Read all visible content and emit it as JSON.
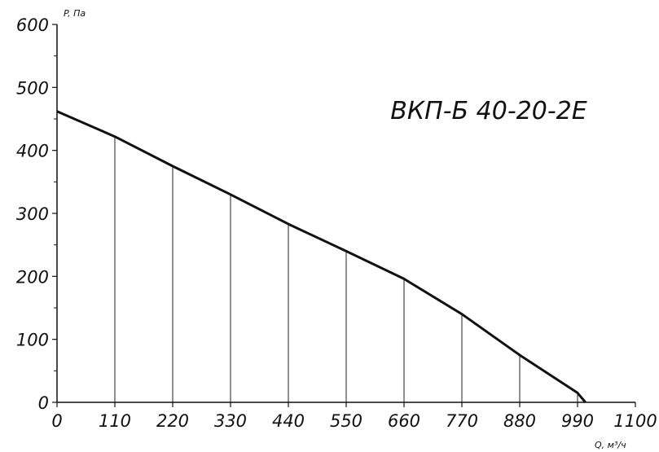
{
  "chart_data": {
    "type": "line",
    "title": "ВКП-Б 40-20-2Е",
    "xlabel": "Q, м³/ч",
    "ylabel": "P, Па",
    "xlim": [
      0,
      1100
    ],
    "ylim": [
      0,
      600
    ],
    "x_ticks": [
      "0",
      "110",
      "220",
      "330",
      "440",
      "550",
      "660",
      "770",
      "880",
      "990",
      "1100"
    ],
    "y_ticks": [
      "0",
      "100",
      "200",
      "300",
      "400",
      "500",
      "600"
    ],
    "grid": "vertical lines up to curve",
    "series": [
      {
        "x": [
          0,
          110,
          220,
          330,
          440,
          550,
          660,
          770,
          880,
          990,
          1005
        ],
        "y": [
          462,
          422,
          375,
          330,
          283,
          240,
          196,
          140,
          75,
          15,
          0
        ]
      }
    ],
    "colors": {
      "line": "#111111",
      "axis": "#111111"
    }
  }
}
